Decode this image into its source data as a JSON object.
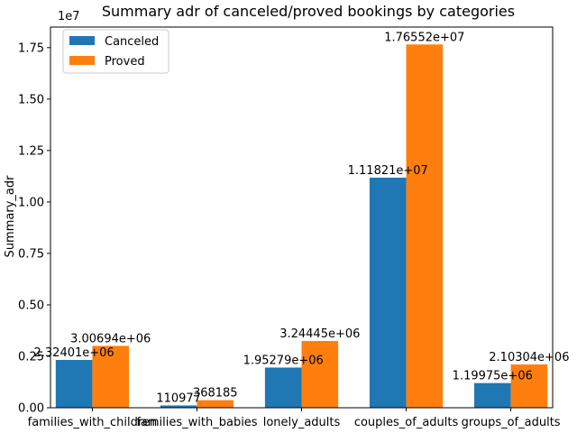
{
  "chart_data": {
    "type": "bar",
    "title": "Summary adr of canceled/proved bookings by categories",
    "xlabel": "",
    "ylabel": "Summary_adr",
    "y_offset_label": "1e7",
    "ylim": [
      0,
      18500000
    ],
    "yticks": [
      0,
      2500000,
      5000000,
      7500000,
      10000000,
      12500000,
      15000000,
      17500000
    ],
    "ytick_labels": [
      "0.00",
      "0.25",
      "0.50",
      "0.75",
      "1.00",
      "1.25",
      "1.50",
      "1.75"
    ],
    "categories": [
      "families_with_children",
      "families_with_babies",
      "lonely_adults",
      "couples_of_adults",
      "groups_of_adults"
    ],
    "series": [
      {
        "name": "Canceled",
        "color": "#1f77b4",
        "values": [
          2324010,
          110977,
          1952790,
          11182100,
          1199750
        ],
        "labels": [
          "2.32401e+06",
          "110977",
          "1.95279e+06",
          "1.11821e+07",
          "1.19975e+06"
        ]
      },
      {
        "name": "Proved",
        "color": "#ff7f0e",
        "values": [
          3006940,
          368185,
          3244450,
          17655200,
          2103040
        ],
        "labels": [
          "3.00694e+06",
          "368185",
          "3.24445e+06",
          "1.76552e+07",
          "2.10304e+06"
        ]
      }
    ],
    "grid": false,
    "legend_position": "top-left"
  }
}
